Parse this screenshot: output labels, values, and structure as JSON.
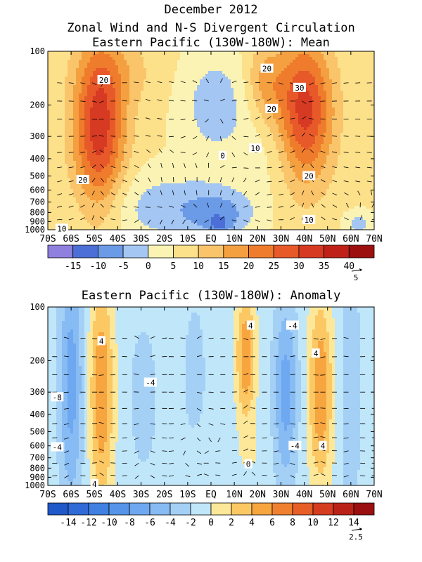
{
  "titles": {
    "main": "December 2012",
    "subtitle": "Zonal Wind and N-S Divergent Circulation",
    "panel1": "Eastern Pacific (130W-180W): Mean",
    "panel2": "Eastern Pacific (130W-180W): Anomaly"
  },
  "chart_data": [
    {
      "type": "heatmap",
      "title": "Eastern Pacific (130W-180W): Mean",
      "x_ticks": [
        "70S",
        "60S",
        "50S",
        "40S",
        "30S",
        "20S",
        "10S",
        "EQ",
        "10N",
        "20N",
        "30N",
        "40N",
        "50N",
        "60N",
        "70N"
      ],
      "x_range": [
        -70,
        70
      ],
      "y_ticks": [
        "100",
        "200",
        "300",
        "400",
        "500",
        "600",
        "700",
        "800",
        "900",
        "1000"
      ],
      "y_range": [
        1000,
        100
      ],
      "y_scale": "log",
      "colorbar": {
        "labels": [
          "-15",
          "-10",
          "-5",
          "0",
          "5",
          "10",
          "15",
          "20",
          "25",
          "30",
          "35",
          "40"
        ],
        "levels": [
          -20,
          -15,
          -10,
          -5,
          0,
          5,
          10,
          15,
          20,
          25,
          30,
          35,
          40,
          45
        ],
        "colors": [
          "#8f7fde",
          "#4b6fd6",
          "#6b9ae6",
          "#a4c6f3",
          "#fbf3b4",
          "#fde08a",
          "#f9c46a",
          "#f4a040",
          "#ef7c2c",
          "#e8592a",
          "#d73a22",
          "#bf2118",
          "#9c1010"
        ]
      },
      "vector_reference": "5",
      "contour_labels": [
        {
          "text": "20",
          "lat": -46,
          "p": 145
        },
        {
          "text": "20",
          "lat": -55,
          "p": 525
        },
        {
          "text": "10",
          "lat": -64,
          "p": 985
        },
        {
          "text": "0",
          "lat": 5,
          "p": 385
        },
        {
          "text": "10",
          "lat": 19,
          "p": 350
        },
        {
          "text": "20",
          "lat": 24,
          "p": 125
        },
        {
          "text": "20",
          "lat": 26,
          "p": 210
        },
        {
          "text": "30",
          "lat": 38,
          "p": 160
        },
        {
          "text": "20",
          "lat": 42,
          "p": 500
        },
        {
          "text": "10",
          "lat": 42,
          "p": 880
        }
      ],
      "features": [
        {
          "lat": -48,
          "p": 270,
          "lat_width": 11,
          "log_p_width": 0.46,
          "value": 27
        },
        {
          "lat": -38,
          "p": 130,
          "lat_width": 16,
          "log_p_width": 0.2,
          "value": 5
        },
        {
          "lat": 40,
          "p": 220,
          "lat_width": 12,
          "log_p_width": 0.4,
          "value": 27
        },
        {
          "lat": 23,
          "p": 150,
          "lat_width": 8,
          "log_p_width": 0.22,
          "value": 10
        },
        {
          "lat": 28,
          "p": 360,
          "lat_width": 14,
          "log_p_width": 0.25,
          "value": -4
        },
        {
          "lat": 2,
          "p": 200,
          "lat_width": 15,
          "log_p_width": 0.3,
          "value": -9
        },
        {
          "lat": -18,
          "p": 750,
          "lat_width": 30,
          "log_p_width": 0.2,
          "value": -9
        },
        {
          "lat": 4,
          "p": 820,
          "lat_width": 14,
          "log_p_width": 0.12,
          "value": -10
        },
        {
          "lat": 4,
          "p": 950,
          "lat_width": 5,
          "log_p_width": 0.04,
          "value": -6
        },
        {
          "lat": 63,
          "p": 930,
          "lat_width": 6,
          "log_p_width": 0.07,
          "value": -8
        }
      ],
      "base_value": 6
    },
    {
      "type": "heatmap",
      "title": "Eastern Pacific (130W-180W): Anomaly",
      "x_ticks": [
        "70S",
        "60S",
        "50S",
        "40S",
        "30S",
        "20S",
        "10S",
        "EQ",
        "10N",
        "20N",
        "30N",
        "40N",
        "50N",
        "60N",
        "70N"
      ],
      "x_range": [
        -70,
        70
      ],
      "y_ticks": [
        "100",
        "200",
        "300",
        "400",
        "500",
        "600",
        "700",
        "800",
        "900",
        "1000"
      ],
      "y_range": [
        1000,
        100
      ],
      "y_scale": "log",
      "colorbar": {
        "labels": [
          "-14",
          "-12",
          "-10",
          "-8",
          "-6",
          "-4",
          "-2",
          "0",
          "2",
          "4",
          "6",
          "8",
          "10",
          "12",
          "14"
        ],
        "levels": [
          -16,
          -14,
          -12,
          -10,
          -8,
          -6,
          -4,
          -2,
          0,
          2,
          4,
          6,
          8,
          10,
          12,
          14,
          16
        ],
        "colors": [
          "#1f58c8",
          "#2f6ad6",
          "#3f80e1",
          "#5694ea",
          "#6ea8f0",
          "#87bbf3",
          "#a4d0f6",
          "#c0e6f9",
          "#fde89a",
          "#fbc864",
          "#f7a53f",
          "#ef8030",
          "#e75e27",
          "#d53d20",
          "#bb2217",
          "#9a1010"
        ]
      },
      "vector_reference": "2.5",
      "contour_labels": [
        {
          "text": "4",
          "lat": -47,
          "p": 155
        },
        {
          "text": "-8",
          "lat": -66,
          "p": 320
        },
        {
          "text": "-4",
          "lat": -26,
          "p": 265
        },
        {
          "text": "-4",
          "lat": -66,
          "p": 610
        },
        {
          "text": "4",
          "lat": -50,
          "p": 980
        },
        {
          "text": "4",
          "lat": 17,
          "p": 127
        },
        {
          "text": "-4",
          "lat": 35,
          "p": 127
        },
        {
          "text": "4",
          "lat": 45,
          "p": 182
        },
        {
          "text": "-4",
          "lat": 36,
          "p": 600
        },
        {
          "text": "4",
          "lat": 48,
          "p": 600
        },
        {
          "text": "0",
          "lat": 16,
          "p": 760
        }
      ],
      "features": [
        {
          "lat": -60,
          "p": 260,
          "lat_width": 5,
          "log_p_width": 0.7,
          "value": -6
        },
        {
          "lat": -47,
          "p": 300,
          "lat_width": 5,
          "log_p_width": 0.6,
          "value": 7
        },
        {
          "lat": -29,
          "p": 320,
          "lat_width": 5,
          "log_p_width": 0.35,
          "value": -3
        },
        {
          "lat": -7,
          "p": 250,
          "lat_width": 5,
          "log_p_width": 0.45,
          "value": -2
        },
        {
          "lat": -5,
          "p": 700,
          "lat_width": 5,
          "log_p_width": 0.2,
          "value": 1
        },
        {
          "lat": 15,
          "p": 190,
          "lat_width": 4,
          "log_p_width": 0.35,
          "value": 7
        },
        {
          "lat": 17,
          "p": 650,
          "lat_width": 6,
          "log_p_width": 0.15,
          "value": 1
        },
        {
          "lat": 32,
          "p": 300,
          "lat_width": 5,
          "log_p_width": 0.5,
          "value": -6
        },
        {
          "lat": 47,
          "p": 300,
          "lat_width": 5,
          "log_p_width": 0.5,
          "value": 7
        },
        {
          "lat": 60,
          "p": 300,
          "lat_width": 4,
          "log_p_width": 0.7,
          "value": -3
        }
      ],
      "base_value": -1
    }
  ]
}
